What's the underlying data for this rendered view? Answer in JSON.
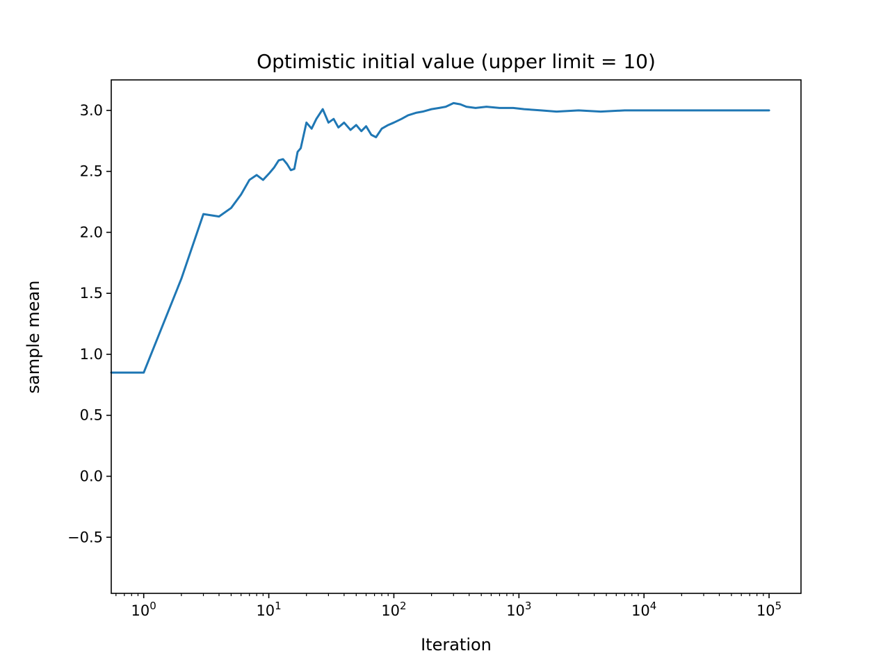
{
  "chart_data": {
    "type": "line",
    "title": "Optimistic initial value (upper limit = 10)",
    "xlabel": "Iteration",
    "ylabel": "sample mean",
    "xscale": "log",
    "xlim": [
      0.55,
      180000
    ],
    "ylim": [
      -0.96,
      3.25
    ],
    "grid": false,
    "legend": "none",
    "line_color": "#1f77b4",
    "xticks": [
      {
        "base": "10",
        "exp": "0",
        "value": 1
      },
      {
        "base": "10",
        "exp": "1",
        "value": 10
      },
      {
        "base": "10",
        "exp": "2",
        "value": 100
      },
      {
        "base": "10",
        "exp": "3",
        "value": 1000
      },
      {
        "base": "10",
        "exp": "4",
        "value": 10000
      },
      {
        "base": "10",
        "exp": "5",
        "value": 100000
      }
    ],
    "yticks": [
      {
        "label": "−0.5",
        "value": -0.5
      },
      {
        "label": "0.0",
        "value": 0.0
      },
      {
        "label": "0.5",
        "value": 0.5
      },
      {
        "label": "1.0",
        "value": 1.0
      },
      {
        "label": "1.5",
        "value": 1.5
      },
      {
        "label": "2.0",
        "value": 2.0
      },
      {
        "label": "2.5",
        "value": 2.5
      },
      {
        "label": "3.0",
        "value": 3.0
      }
    ],
    "series": [
      {
        "x": [
          0.55,
          1,
          2,
          3,
          4,
          5,
          6,
          7,
          8,
          9,
          10,
          11,
          12,
          13,
          14,
          15,
          16,
          17,
          18,
          20,
          22,
          24,
          27,
          30,
          33,
          36,
          40,
          45,
          50,
          55,
          60,
          66,
          72,
          80,
          90,
          100,
          115,
          130,
          150,
          170,
          200,
          230,
          260,
          300,
          340,
          380,
          450,
          550,
          700,
          900,
          1100,
          1500,
          2000,
          3000,
          4500,
          7000,
          10000,
          15000,
          25000,
          40000,
          65000,
          100000
        ],
        "y": [
          0.85,
          0.85,
          1.62,
          2.15,
          2.13,
          2.2,
          2.31,
          2.43,
          2.47,
          2.43,
          2.48,
          2.53,
          2.59,
          2.6,
          2.56,
          2.51,
          2.52,
          2.66,
          2.69,
          2.9,
          2.85,
          2.93,
          3.01,
          2.9,
          2.93,
          2.86,
          2.9,
          2.84,
          2.88,
          2.83,
          2.87,
          2.8,
          2.78,
          2.85,
          2.88,
          2.9,
          2.93,
          2.96,
          2.98,
          2.99,
          3.01,
          3.02,
          3.03,
          3.06,
          3.05,
          3.03,
          3.02,
          3.03,
          3.02,
          3.02,
          3.01,
          3.0,
          2.99,
          3.0,
          2.99,
          3.0,
          3.0,
          3.0,
          3.0,
          3.0,
          3.0,
          3.0
        ]
      }
    ]
  }
}
